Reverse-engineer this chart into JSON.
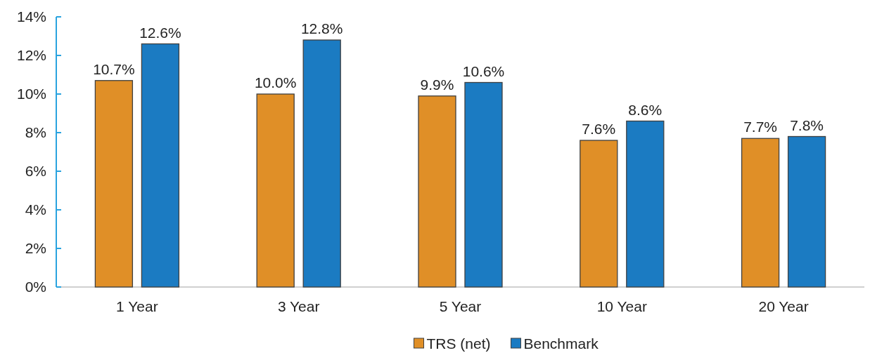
{
  "chart_data": {
    "type": "bar",
    "categories": [
      "1 Year",
      "3 Year",
      "5 Year",
      "10 Year",
      "20 Year"
    ],
    "series": [
      {
        "name": "TRS (net)",
        "color": "#e08f27",
        "values": [
          10.7,
          10.0,
          9.9,
          7.6,
          7.7
        ],
        "value_labels": [
          "10.7%",
          "10.0%",
          "9.9%",
          "7.6%",
          "7.7%"
        ]
      },
      {
        "name": "Benchmark",
        "color": "#1b7bc2",
        "values": [
          12.6,
          12.8,
          10.6,
          8.6,
          7.8
        ],
        "value_labels": [
          "12.6%",
          "12.8%",
          "10.6%",
          "8.6%",
          "7.8%"
        ]
      }
    ],
    "ylim": [
      0,
      14
    ],
    "yticks": [
      {
        "value": 0,
        "label": "0%"
      },
      {
        "value": 2,
        "label": "2%"
      },
      {
        "value": 4,
        "label": "4%"
      },
      {
        "value": 6,
        "label": "6%"
      },
      {
        "value": 8,
        "label": "8%"
      },
      {
        "value": 10,
        "label": "10%"
      },
      {
        "value": 12,
        "label": "12%"
      },
      {
        "value": 14,
        "label": "14%"
      }
    ],
    "grid": false,
    "legend": "bottom"
  }
}
